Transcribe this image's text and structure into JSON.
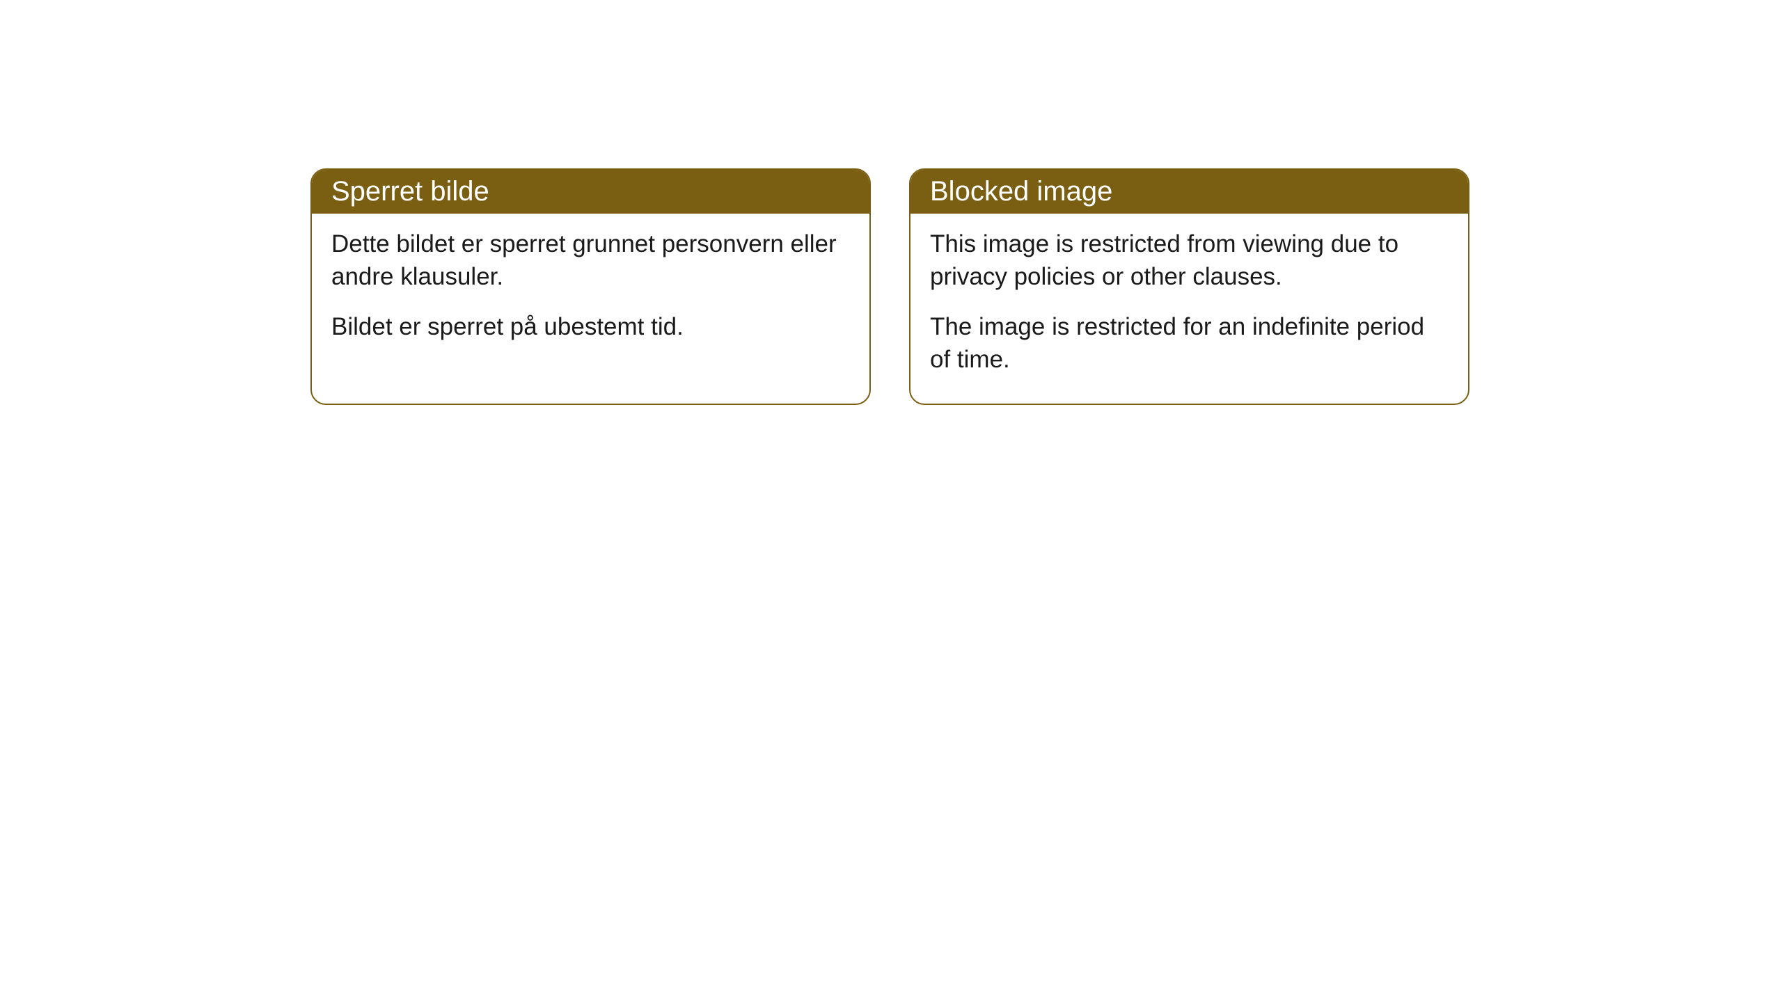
{
  "cards": [
    {
      "title": "Sperret bilde",
      "paragraph1": "Dette bildet er sperret grunnet personvern eller andre klausuler.",
      "paragraph2": "Bildet er sperret på ubestemt tid."
    },
    {
      "title": "Blocked image",
      "paragraph1": "This image is restricted from viewing due to privacy policies or other clauses.",
      "paragraph2": "The image is restricted for an indefinite period of time."
    }
  ],
  "styling": {
    "header_background": "#7a5f13",
    "header_text_color": "#ffffff",
    "border_color": "#7a5f13",
    "body_background": "#ffffff",
    "body_text_color": "#1a1a1a",
    "border_radius": 22,
    "title_fontsize": 40,
    "body_fontsize": 35
  }
}
